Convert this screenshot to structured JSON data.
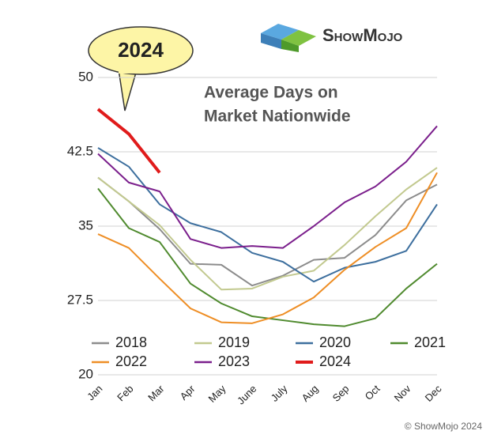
{
  "chart_data": {
    "type": "line",
    "title": [
      "Average Days on",
      "Market Nationwide"
    ],
    "callout": "2024",
    "logo": "ShowMojo",
    "credit": "© ShowMojo 2024",
    "categories": [
      "Jan",
      "Feb",
      "Mar",
      "Apr",
      "May",
      "June",
      "July",
      "Aug",
      "Sep",
      "Oct",
      "Nov",
      "Dec"
    ],
    "series": [
      {
        "name": "2018",
        "color": "#8c8c8c",
        "values": [
          39.9,
          37.5,
          34.7,
          31.2,
          31.1,
          29.0,
          30.0,
          31.6,
          31.8,
          34.1,
          37.6,
          39.2
        ]
      },
      {
        "name": "2019",
        "color": "#c2c98f",
        "values": [
          39.9,
          37.5,
          35.1,
          31.6,
          28.6,
          28.7,
          29.9,
          30.5,
          33.1,
          36.0,
          38.7,
          40.9
        ]
      },
      {
        "name": "2020",
        "color": "#3d6f9e",
        "values": [
          42.9,
          41.0,
          37.2,
          35.3,
          34.4,
          32.3,
          31.4,
          29.4,
          30.8,
          31.4,
          32.5,
          37.2
        ]
      },
      {
        "name": "2021",
        "color": "#4f8a2e",
        "values": [
          38.8,
          34.8,
          33.4,
          29.2,
          27.2,
          25.9,
          25.5,
          25.1,
          24.9,
          25.7,
          28.7,
          31.2
        ]
      },
      {
        "name": "2022",
        "color": "#ee8e25",
        "values": [
          34.2,
          32.8,
          29.7,
          26.7,
          25.3,
          25.2,
          26.1,
          27.8,
          30.6,
          32.9,
          34.8,
          40.4
        ]
      },
      {
        "name": "2023",
        "color": "#7b1f8c",
        "values": [
          42.3,
          39.4,
          38.5,
          33.7,
          32.8,
          33.0,
          32.8,
          35.0,
          37.4,
          39.0,
          41.5,
          45.1
        ]
      },
      {
        "name": "2024",
        "color": "#e01b1b",
        "values": [
          46.8,
          44.3,
          40.4,
          null,
          null,
          null,
          null,
          null,
          null,
          null,
          null,
          null
        ]
      }
    ],
    "ylim": [
      20,
      50
    ],
    "yticks": [
      20,
      27.5,
      35,
      42.5,
      50
    ],
    "grid": true
  }
}
